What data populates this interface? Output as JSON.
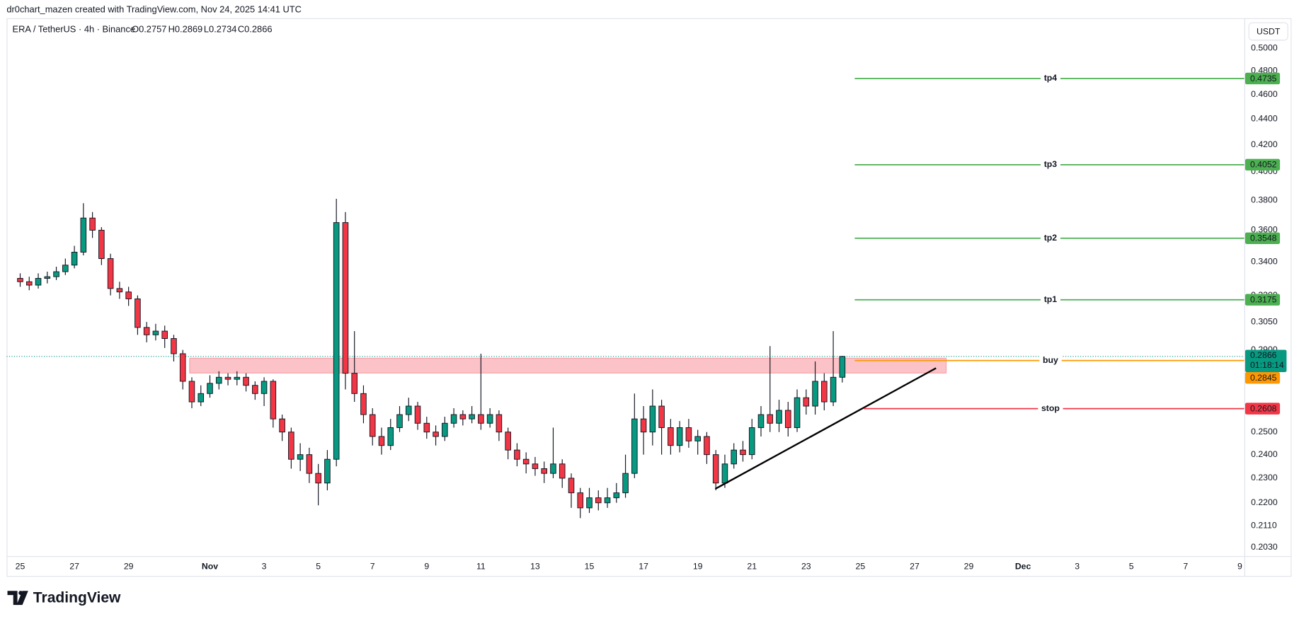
{
  "header": {
    "attribution": "dr0chart_mazen created with TradingView.com, Nov 24, 2025 14:41 UTC"
  },
  "chart_data": {
    "type": "candlestick",
    "title": "ERA / TetherUS · 4h · Binance",
    "ohlc_legend": [
      "O0.2757",
      "H0.2869",
      "L0.2734",
      "C0.2866"
    ],
    "currency": "USDT",
    "up_color": "#089981",
    "down_color": "#f23645",
    "log_scale": true,
    "grid": false,
    "x": [
      "Oct 25 00:00",
      "Oct 25 08:00",
      "Oct 25 16:00",
      "Oct 26 00:00",
      "Oct 26 08:00",
      "Oct 26 16:00",
      "Oct 27 00:00",
      "Oct 27 08:00",
      "Oct 27 16:00",
      "Oct 28 00:00",
      "Oct 28 08:00",
      "Oct 28 16:00",
      "Oct 29 00:00",
      "Oct 29 08:00",
      "Oct 29 16:00",
      "Oct 30 00:00",
      "Oct 30 08:00",
      "Oct 30 16:00",
      "Oct 31 00:00",
      "Oct 31 08:00",
      "Oct 31 16:00",
      "Nov 1 00:00",
      "Nov 1 08:00",
      "Nov 1 16:00",
      "Nov 2 00:00",
      "Nov 2 08:00",
      "Nov 2 16:00",
      "Nov 3 00:00",
      "Nov 3 08:00",
      "Nov 3 16:00",
      "Nov 4 00:00",
      "Nov 4 08:00",
      "Nov 4 16:00",
      "Nov 5 00:00",
      "Nov 5 08:00",
      "Nov 5 16:00",
      "Nov 6 00:00",
      "Nov 6 08:00",
      "Nov 6 16:00",
      "Nov 7 00:00",
      "Nov 7 08:00",
      "Nov 7 16:00",
      "Nov 8 00:00",
      "Nov 8 08:00",
      "Nov 8 16:00",
      "Nov 9 00:00",
      "Nov 9 08:00",
      "Nov 9 16:00",
      "Nov 10 00:00",
      "Nov 10 08:00",
      "Nov 10 16:00",
      "Nov 11 00:00",
      "Nov 11 08:00",
      "Nov 11 16:00",
      "Nov 12 00:00",
      "Nov 12 08:00",
      "Nov 12 16:00",
      "Nov 13 00:00",
      "Nov 13 08:00",
      "Nov 13 16:00",
      "Nov 14 00:00",
      "Nov 14 08:00",
      "Nov 14 16:00",
      "Nov 15 00:00",
      "Nov 15 08:00",
      "Nov 15 16:00",
      "Nov 16 00:00",
      "Nov 16 08:00",
      "Nov 16 16:00",
      "Nov 17 00:00",
      "Nov 17 08:00",
      "Nov 17 16:00",
      "Nov 18 00:00",
      "Nov 18 08:00",
      "Nov 18 16:00",
      "Nov 19 00:00",
      "Nov 19 08:00",
      "Nov 19 16:00",
      "Nov 20 00:00",
      "Nov 20 08:00",
      "Nov 20 16:00",
      "Nov 21 00:00",
      "Nov 21 08:00",
      "Nov 21 16:00",
      "Nov 22 00:00",
      "Nov 22 08:00",
      "Nov 22 16:00",
      "Nov 23 00:00",
      "Nov 23 08:00",
      "Nov 23 16:00",
      "Nov 24 00:00",
      "Nov 24 08:00"
    ],
    "open": [
      0.33,
      0.328,
      0.326,
      0.33,
      0.331,
      0.334,
      0.338,
      0.346,
      0.368,
      0.36,
      0.342,
      0.324,
      0.322,
      0.318,
      0.302,
      0.298,
      0.3,
      0.296,
      0.288,
      0.274,
      0.264,
      0.268,
      0.273,
      0.276,
      0.275,
      0.276,
      0.272,
      0.268,
      0.274,
      0.256,
      0.25,
      0.238,
      0.24,
      0.232,
      0.228,
      0.238,
      0.365,
      0.278,
      0.268,
      0.258,
      0.248,
      0.244,
      0.252,
      0.258,
      0.262,
      0.254,
      0.25,
      0.248,
      0.254,
      0.258,
      0.256,
      0.258,
      0.254,
      0.258,
      0.25,
      0.242,
      0.238,
      0.236,
      0.234,
      0.232,
      0.236,
      0.23,
      0.224,
      0.218,
      0.222,
      0.22,
      0.222,
      0.224,
      0.232,
      0.256,
      0.25,
      0.262,
      0.252,
      0.244,
      0.252,
      0.246,
      0.248,
      0.24,
      0.228,
      0.236,
      0.242,
      0.24,
      0.252,
      0.258,
      0.254,
      0.26,
      0.252,
      0.266,
      0.262,
      0.274,
      0.264,
      0.276
    ],
    "high": [
      0.333,
      0.331,
      0.333,
      0.334,
      0.337,
      0.342,
      0.35,
      0.378,
      0.372,
      0.362,
      0.345,
      0.328,
      0.325,
      0.32,
      0.305,
      0.304,
      0.303,
      0.298,
      0.29,
      0.276,
      0.272,
      0.277,
      0.279,
      0.278,
      0.279,
      0.278,
      0.274,
      0.276,
      0.275,
      0.258,
      0.252,
      0.245,
      0.243,
      0.236,
      0.242,
      0.381,
      0.372,
      0.3,
      0.272,
      0.261,
      0.252,
      0.256,
      0.262,
      0.266,
      0.264,
      0.257,
      0.253,
      0.257,
      0.261,
      0.26,
      0.262,
      0.288,
      0.261,
      0.26,
      0.252,
      0.245,
      0.241,
      0.239,
      0.237,
      0.252,
      0.238,
      0.232,
      0.226,
      0.226,
      0.225,
      0.226,
      0.228,
      0.24,
      0.268,
      0.262,
      0.27,
      0.265,
      0.256,
      0.255,
      0.256,
      0.251,
      0.25,
      0.242,
      0.24,
      0.245,
      0.246,
      0.256,
      0.262,
      0.292,
      0.265,
      0.264,
      0.27,
      0.27,
      0.284,
      0.278,
      0.3,
      0.2869
    ],
    "low": [
      0.325,
      0.323,
      0.324,
      0.327,
      0.329,
      0.332,
      0.336,
      0.344,
      0.355,
      0.338,
      0.32,
      0.318,
      0.314,
      0.298,
      0.294,
      0.295,
      0.291,
      0.284,
      0.27,
      0.261,
      0.262,
      0.266,
      0.27,
      0.272,
      0.272,
      0.269,
      0.265,
      0.262,
      0.252,
      0.246,
      0.234,
      0.233,
      0.228,
      0.219,
      0.225,
      0.235,
      0.27,
      0.264,
      0.254,
      0.244,
      0.24,
      0.242,
      0.25,
      0.255,
      0.251,
      0.247,
      0.244,
      0.246,
      0.252,
      0.253,
      0.254,
      0.251,
      0.252,
      0.246,
      0.238,
      0.235,
      0.232,
      0.231,
      0.228,
      0.23,
      0.226,
      0.218,
      0.214,
      0.216,
      0.217,
      0.218,
      0.22,
      0.222,
      0.23,
      0.24,
      0.244,
      0.24,
      0.24,
      0.241,
      0.243,
      0.24,
      0.236,
      0.225,
      0.226,
      0.234,
      0.237,
      0.238,
      0.248,
      0.25,
      0.25,
      0.248,
      0.25,
      0.258,
      0.258,
      0.26,
      0.262,
      0.2734
    ],
    "close": [
      0.328,
      0.326,
      0.33,
      0.331,
      0.334,
      0.338,
      0.346,
      0.368,
      0.36,
      0.342,
      0.324,
      0.322,
      0.318,
      0.302,
      0.298,
      0.3,
      0.296,
      0.288,
      0.274,
      0.264,
      0.268,
      0.273,
      0.276,
      0.275,
      0.276,
      0.272,
      0.268,
      0.274,
      0.256,
      0.25,
      0.238,
      0.24,
      0.232,
      0.228,
      0.238,
      0.365,
      0.278,
      0.268,
      0.258,
      0.248,
      0.244,
      0.252,
      0.258,
      0.262,
      0.254,
      0.25,
      0.248,
      0.254,
      0.258,
      0.256,
      0.258,
      0.254,
      0.258,
      0.25,
      0.242,
      0.238,
      0.236,
      0.234,
      0.232,
      0.236,
      0.23,
      0.224,
      0.218,
      0.222,
      0.22,
      0.222,
      0.224,
      0.232,
      0.256,
      0.25,
      0.262,
      0.252,
      0.244,
      0.252,
      0.246,
      0.248,
      0.24,
      0.228,
      0.236,
      0.242,
      0.24,
      0.252,
      0.258,
      0.254,
      0.26,
      0.252,
      0.266,
      0.262,
      0.274,
      0.264,
      0.276,
      0.2866
    ],
    "xlim": [
      "Oct 24 12:00",
      "Dec 9 04:00"
    ],
    "xticks": [
      {
        "value": "Oct 25",
        "label": "25"
      },
      {
        "value": "Oct 27",
        "label": "27"
      },
      {
        "value": "Oct 29",
        "label": "29"
      },
      {
        "value": "Nov 1",
        "label": "Nov"
      },
      {
        "value": "Nov 3",
        "label": "3"
      },
      {
        "value": "Nov 5",
        "label": "5"
      },
      {
        "value": "Nov 7",
        "label": "7"
      },
      {
        "value": "Nov 9",
        "label": "9"
      },
      {
        "value": "Nov 11",
        "label": "11"
      },
      {
        "value": "Nov 13",
        "label": "13"
      },
      {
        "value": "Nov 15",
        "label": "15"
      },
      {
        "value": "Nov 17",
        "label": "17"
      },
      {
        "value": "Nov 19",
        "label": "19"
      },
      {
        "value": "Nov 21",
        "label": "21"
      },
      {
        "value": "Nov 23",
        "label": "23"
      },
      {
        "value": "Nov 25",
        "label": "25"
      },
      {
        "value": "Nov 27",
        "label": "27"
      },
      {
        "value": "Nov 29",
        "label": "29"
      },
      {
        "value": "Dec 1",
        "label": "Dec"
      },
      {
        "value": "Dec 3",
        "label": "3"
      },
      {
        "value": "Dec 5",
        "label": "5"
      },
      {
        "value": "Dec 7",
        "label": "7"
      },
      {
        "value": "Dec 9",
        "label": "9"
      }
    ],
    "ylim": [
      0.1998,
      0.528
    ],
    "yticks": [
      {
        "value": 0.5,
        "label": "0.5000"
      },
      {
        "value": 0.48,
        "label": "0.4800"
      },
      {
        "value": 0.46,
        "label": "0.4600"
      },
      {
        "value": 0.44,
        "label": "0.4400"
      },
      {
        "value": 0.42,
        "label": "0.4200"
      },
      {
        "value": 0.4,
        "label": "0.4000"
      },
      {
        "value": 0.38,
        "label": "0.3800"
      },
      {
        "value": 0.36,
        "label": "0.3600"
      },
      {
        "value": 0.34,
        "label": "0.3400"
      },
      {
        "value": 0.32,
        "label": "0.3200"
      },
      {
        "value": 0.305,
        "label": "0.3050"
      },
      {
        "value": 0.29,
        "label": "0.2900"
      },
      {
        "value": 0.25,
        "label": "0.2500"
      },
      {
        "value": 0.24,
        "label": "0.2400"
      },
      {
        "value": 0.23,
        "label": "0.2300"
      },
      {
        "value": 0.22,
        "label": "0.2200"
      },
      {
        "value": 0.211,
        "label": "0.2110"
      },
      {
        "value": 0.203,
        "label": "0.2030"
      }
    ],
    "last_price": {
      "value": 0.2866,
      "countdown": "01:18:14",
      "color": "#089981"
    },
    "levels": [
      {
        "name": "tp4",
        "value": 0.4735,
        "color": "#4caf50",
        "from": "Nov 24 19:00"
      },
      {
        "name": "tp3",
        "value": 0.4052,
        "color": "#4caf50",
        "from": "Nov 24 19:00"
      },
      {
        "name": "tp2",
        "value": 0.3548,
        "color": "#4caf50",
        "from": "Nov 24 19:00"
      },
      {
        "name": "tp1",
        "value": 0.3175,
        "color": "#4caf50",
        "from": "Nov 24 19:00"
      },
      {
        "name": "buy",
        "value": 0.2845,
        "color": "#ff9800",
        "from": "Nov 24 19:00"
      },
      {
        "name": "stop",
        "value": 0.2608,
        "color": "#f23645",
        "from": "Nov 25 03:00"
      }
    ],
    "zone": {
      "from": "Oct 31 06:00",
      "to": "Nov 28 04:00",
      "low": 0.2781,
      "high": 0.2857,
      "color": "#f23645"
    },
    "trendline": {
      "x": [
        "Nov 19 15:30",
        "Nov 27 19:00"
      ],
      "y": [
        0.2256,
        0.2806
      ],
      "color": "#000000"
    }
  },
  "footer": {
    "brand": "TradingView"
  }
}
